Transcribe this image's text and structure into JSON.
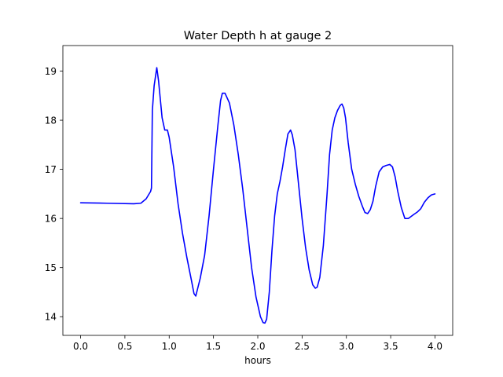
{
  "chart_data": {
    "type": "line",
    "title": "Water Depth h at gauge 2",
    "xlabel": "hours",
    "ylabel": "",
    "xlim": [
      -0.2,
      4.2
    ],
    "ylim": [
      13.62,
      19.52
    ],
    "x_ticks": [
      0.0,
      0.5,
      1.0,
      1.5,
      2.0,
      2.5,
      3.0,
      3.5,
      4.0
    ],
    "x_tick_labels": [
      "0.0",
      "0.5",
      "1.0",
      "1.5",
      "2.0",
      "2.5",
      "3.0",
      "3.5",
      "4.0"
    ],
    "y_ticks": [
      14,
      15,
      16,
      17,
      18,
      19
    ],
    "y_tick_labels": [
      "14",
      "15",
      "16",
      "17",
      "18",
      "19"
    ],
    "grid": false,
    "series": [
      {
        "color": "#0000ff",
        "x": [
          0.0,
          0.3,
          0.6,
          0.68,
          0.74,
          0.79,
          0.8,
          0.81,
          0.83,
          0.86,
          0.88,
          0.92,
          0.95,
          0.98,
          1.0,
          1.05,
          1.1,
          1.15,
          1.2,
          1.25,
          1.28,
          1.3,
          1.35,
          1.4,
          1.45,
          1.5,
          1.55,
          1.58,
          1.6,
          1.63,
          1.68,
          1.73,
          1.78,
          1.83,
          1.88,
          1.93,
          1.98,
          2.03,
          2.06,
          2.08,
          2.1,
          2.13,
          2.16,
          2.19,
          2.22,
          2.25,
          2.28,
          2.31,
          2.34,
          2.37,
          2.39,
          2.42,
          2.46,
          2.5,
          2.54,
          2.58,
          2.62,
          2.65,
          2.67,
          2.7,
          2.74,
          2.78,
          2.81,
          2.84,
          2.87,
          2.9,
          2.93,
          2.95,
          2.97,
          2.99,
          3.02,
          3.06,
          3.1,
          3.14,
          3.18,
          3.21,
          3.24,
          3.27,
          3.3,
          3.33,
          3.37,
          3.41,
          3.45,
          3.49,
          3.52,
          3.55,
          3.58,
          3.62,
          3.66,
          3.7,
          3.73,
          3.76,
          3.8,
          3.84,
          3.88,
          3.92,
          3.96,
          4.0
        ],
        "y": [
          16.32,
          16.31,
          16.3,
          16.31,
          16.4,
          16.55,
          16.62,
          18.2,
          18.7,
          19.07,
          18.8,
          18.05,
          17.8,
          17.8,
          17.65,
          17.05,
          16.3,
          15.7,
          15.2,
          14.75,
          14.47,
          14.42,
          14.78,
          15.25,
          16.05,
          17.0,
          17.9,
          18.4,
          18.55,
          18.55,
          18.35,
          17.9,
          17.3,
          16.6,
          15.8,
          15.0,
          14.4,
          14.0,
          13.88,
          13.87,
          13.95,
          14.5,
          15.35,
          16.05,
          16.5,
          16.75,
          17.05,
          17.4,
          17.72,
          17.8,
          17.7,
          17.4,
          16.7,
          16.0,
          15.4,
          14.95,
          14.65,
          14.58,
          14.6,
          14.8,
          15.45,
          16.45,
          17.3,
          17.8,
          18.05,
          18.2,
          18.3,
          18.33,
          18.25,
          18.05,
          17.55,
          17.0,
          16.7,
          16.45,
          16.25,
          16.12,
          16.1,
          16.18,
          16.35,
          16.65,
          16.95,
          17.05,
          17.08,
          17.1,
          17.05,
          16.85,
          16.55,
          16.22,
          16.0,
          16.0,
          16.04,
          16.08,
          16.13,
          16.2,
          16.33,
          16.42,
          16.48,
          16.5
        ]
      }
    ]
  }
}
